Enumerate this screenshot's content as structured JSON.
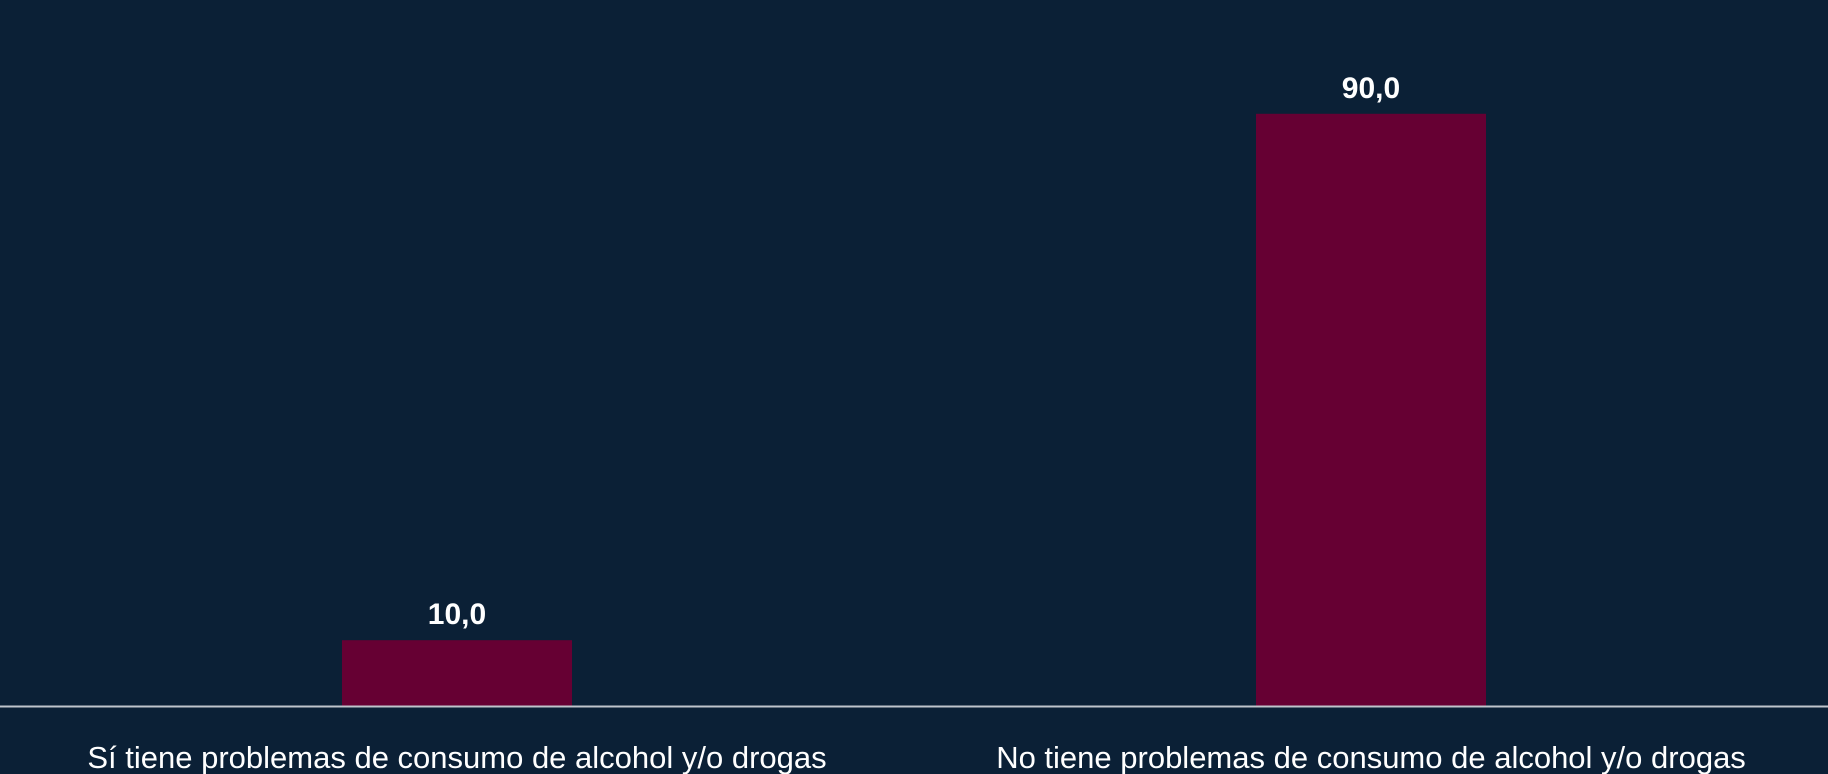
{
  "chart_data": {
    "type": "bar",
    "categories": [
      "Sí tiene problemas de consumo de alcohol y/o drogas",
      "No tiene problemas de consumo de alcohol y/o drogas"
    ],
    "values": [
      10.0,
      90.0
    ],
    "data_labels": [
      "10,0",
      "90,0"
    ],
    "title": "",
    "xlabel": "",
    "ylabel": "",
    "ylim": [
      0,
      100
    ],
    "grid": false,
    "legend": "none",
    "colors": {
      "background": "#0b2036",
      "bar": "#660033",
      "axis": "#bfc5cc",
      "text": "#ffffff"
    }
  }
}
